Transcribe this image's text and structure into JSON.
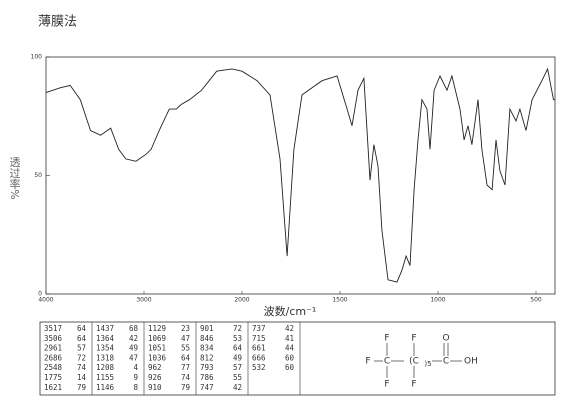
{
  "chart_data": {
    "type": "line",
    "title": "薄膜法",
    "y_label": "透过率%",
    "x_label": "波数/cm⁻¹",
    "color": "#222",
    "xlim": [
      4000,
      400
    ],
    "xticks": [
      4000,
      3000,
      2000,
      1500,
      1000,
      500
    ],
    "ylim": [
      0,
      100
    ],
    "yticks": [
      0,
      50,
      100
    ],
    "x": [
      4000,
      3856,
      3753,
      3650,
      3546,
      3443,
      3340,
      3258,
      3186,
      3082,
      2979,
      2928,
      2845,
      2742,
      2670,
      2619,
      2536,
      2412,
      2258,
      2103,
      2000,
      1923,
      1857,
      1806,
      1770,
      1735,
      1694,
      1592,
      1515,
      1464,
      1439,
      1408,
      1378,
      1347,
      1327,
      1306,
      1286,
      1255,
      1209,
      1184,
      1163,
      1143,
      1122,
      1102,
      1082,
      1056,
      1041,
      1020,
      990,
      954,
      929,
      888,
      867,
      847,
      827,
      796,
      776,
      750,
      724,
      704,
      684,
      658,
      633,
      602,
      582,
      551,
      520,
      469,
      439,
      408,
      400
    ],
    "values": [
      85,
      87,
      88,
      82,
      69,
      67,
      70,
      61,
      57,
      56,
      59,
      61,
      69,
      78,
      78,
      80,
      82,
      86,
      94,
      95,
      94,
      90,
      84,
      57,
      16,
      61,
      84,
      90,
      92,
      78,
      71,
      86,
      91,
      48,
      63,
      54,
      27,
      6,
      5,
      10,
      16,
      12,
      44,
      65,
      82,
      78,
      61,
      86,
      92,
      86,
      92,
      78,
      65,
      71,
      63,
      82,
      61,
      46,
      44,
      65,
      52,
      46,
      78,
      73,
      78,
      69,
      82,
      90,
      95,
      82,
      82
    ]
  },
  "peak_table": [
    [
      [
        3517,
        64
      ],
      [
        3506,
        64
      ],
      [
        2961,
        57
      ],
      [
        2686,
        72
      ],
      [
        2548,
        74
      ],
      [
        1775,
        14
      ],
      [
        1621,
        79
      ]
    ],
    [
      [
        1437,
        68
      ],
      [
        1364,
        42
      ],
      [
        1354,
        49
      ],
      [
        1318,
        47
      ],
      [
        1208,
        4
      ],
      [
        1155,
        9
      ],
      [
        1146,
        8
      ]
    ],
    [
      [
        1129,
        23
      ],
      [
        1069,
        47
      ],
      [
        1051,
        55
      ],
      [
        1036,
        64
      ],
      [
        962,
        77
      ],
      [
        926,
        74
      ],
      [
        910,
        79
      ]
    ],
    [
      [
        901,
        72
      ],
      [
        846,
        53
      ],
      [
        834,
        64
      ],
      [
        812,
        49
      ],
      [
        793,
        57
      ],
      [
        786,
        55
      ],
      [
        747,
        42
      ]
    ],
    [
      [
        737,
        42
      ],
      [
        715,
        41
      ],
      [
        661,
        44
      ],
      [
        666,
        60
      ],
      [
        532,
        60
      ]
    ]
  ],
  "structure": {
    "f1": "F",
    "f2": "F",
    "f3": "F",
    "c1": "C",
    "f4": "F",
    "f5": "F",
    "c2": "(C",
    "n": ")5",
    "c3": "C",
    "o": "O",
    "oh": "OH"
  }
}
